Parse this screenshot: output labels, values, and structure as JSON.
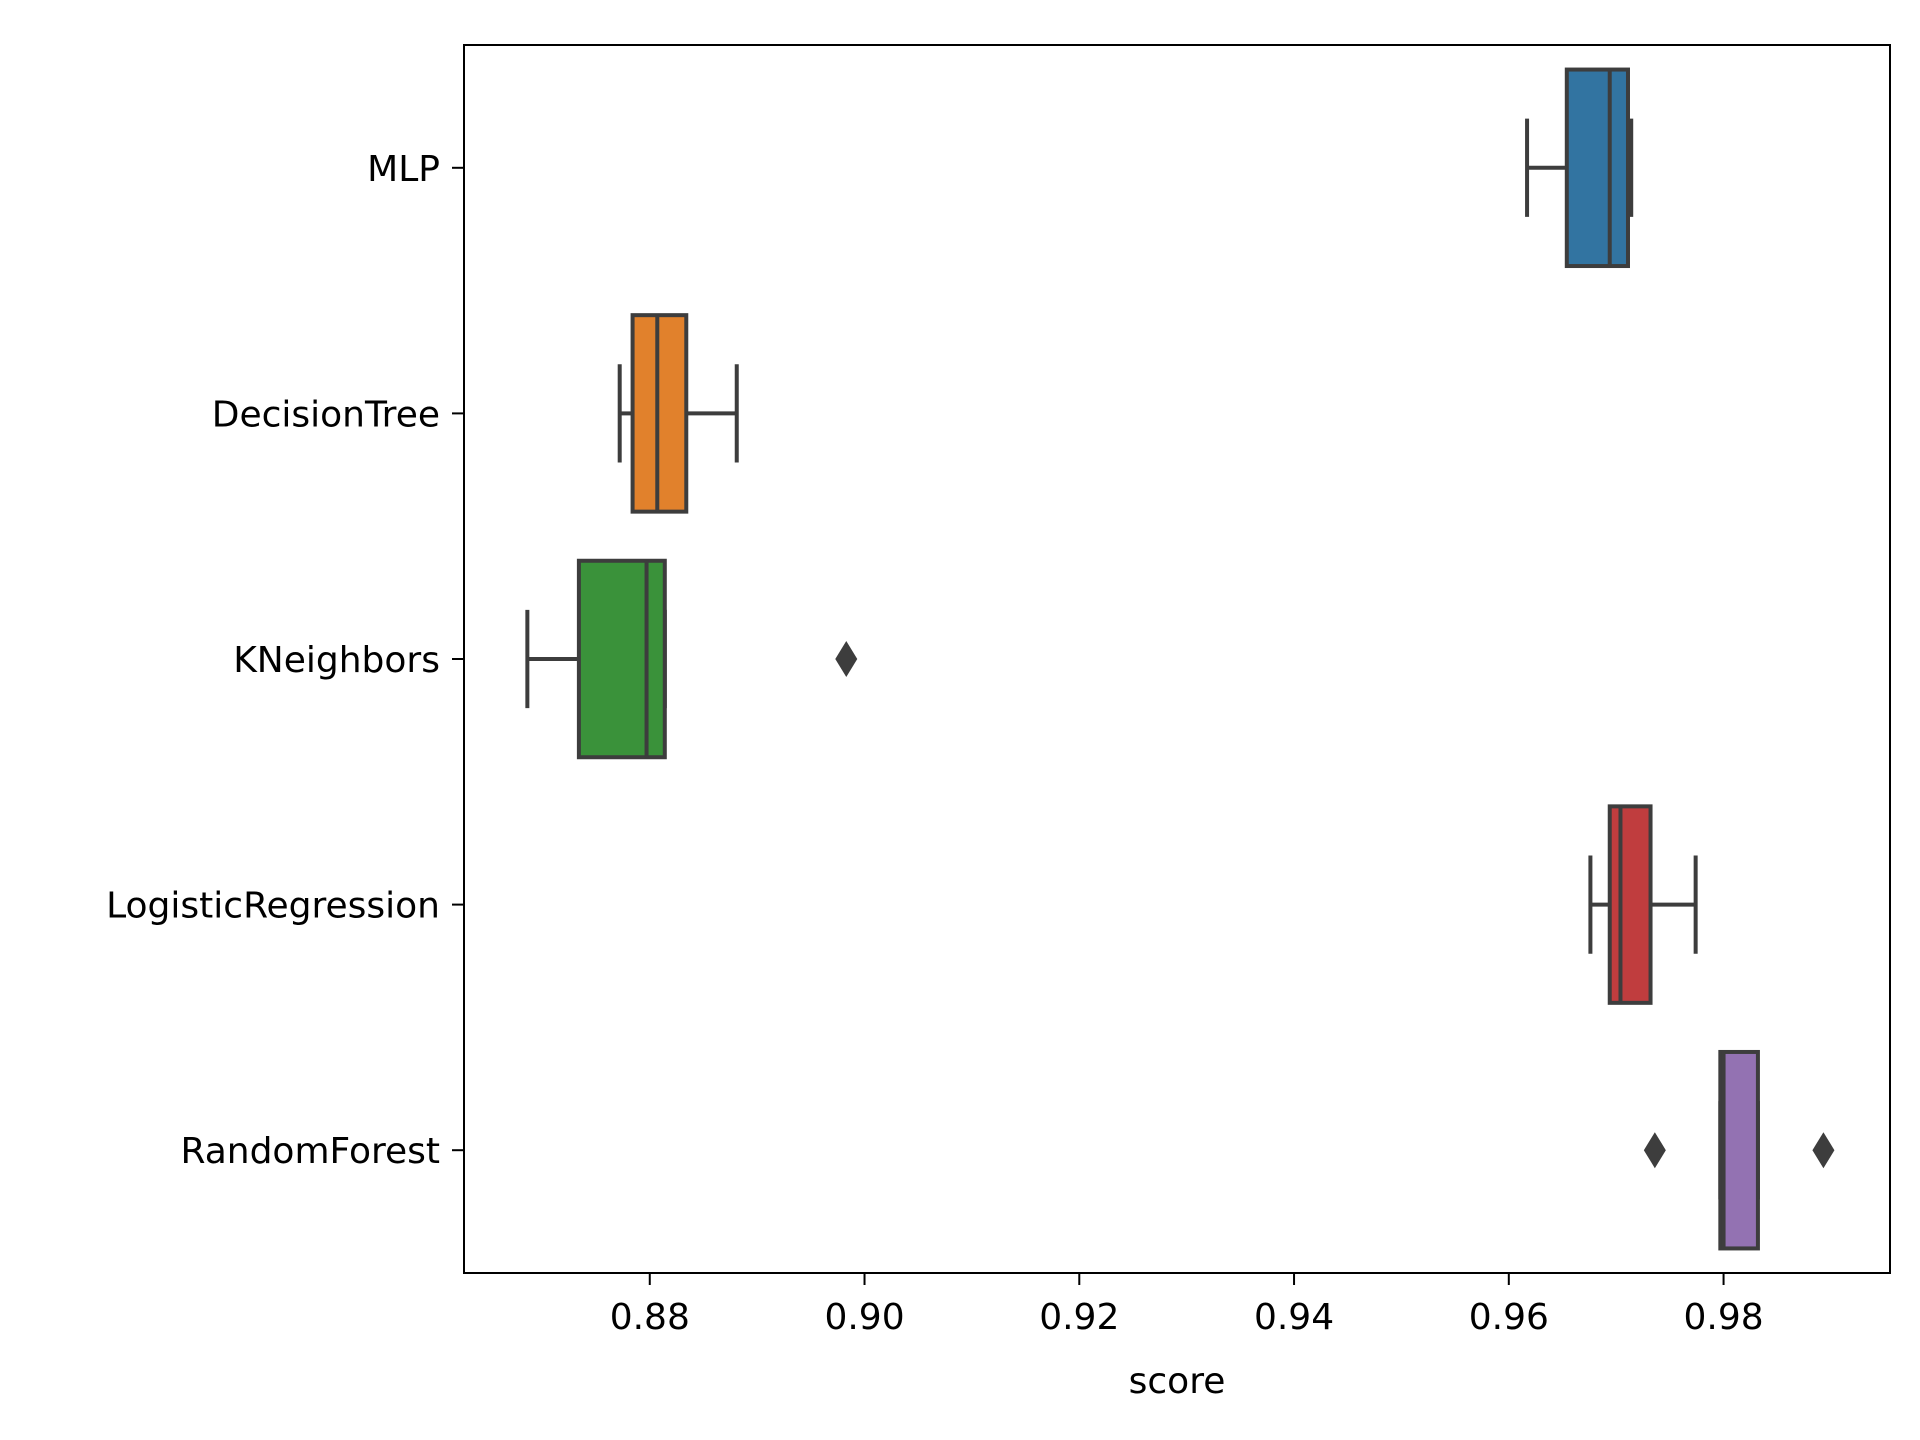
{
  "chart_data": {
    "type": "boxplot",
    "orientation": "horizontal",
    "title": "",
    "xlabel": "score",
    "ylabel": "",
    "xlim": [
      0.8627,
      0.9955
    ],
    "xticks": [
      0.88,
      0.9,
      0.92,
      0.94,
      0.96,
      0.98
    ],
    "xtick_labels": [
      "0.88",
      "0.90",
      "0.92",
      "0.94",
      "0.96",
      "0.98"
    ],
    "grid": false,
    "categories": [
      "MLP",
      "DecisionTree",
      "KNeighbors",
      "LogisticRegression",
      "RandomForest"
    ],
    "boxes": [
      {
        "category": "MLP",
        "color": "#3274a1",
        "whisker_low": 0.9617,
        "q1": 0.9654,
        "median": 0.9694,
        "q3": 0.9711,
        "whisker_high": 0.9714,
        "outliers": []
      },
      {
        "category": "DecisionTree",
        "color": "#e1812c",
        "whisker_low": 0.8772,
        "q1": 0.8784,
        "median": 0.8807,
        "q3": 0.8834,
        "whisker_high": 0.8881,
        "outliers": []
      },
      {
        "category": "KNeighbors",
        "color": "#3a923a",
        "whisker_low": 0.8686,
        "q1": 0.8734,
        "median": 0.8797,
        "q3": 0.8814,
        "whisker_high": 0.8814,
        "outliers": [
          0.8983
        ]
      },
      {
        "category": "LogisticRegression",
        "color": "#c03d3e",
        "whisker_low": 0.9676,
        "q1": 0.9694,
        "median": 0.9704,
        "q3": 0.9732,
        "whisker_high": 0.9774,
        "outliers": []
      },
      {
        "category": "RandomForest",
        "color": "#9372b2",
        "whisker_low": 0.9797,
        "q1": 0.9797,
        "median": 0.98,
        "q3": 0.9832,
        "whisker_high": 0.9832,
        "outliers": [
          0.9736,
          0.9893
        ]
      }
    ],
    "line_color": "#3d3d3d"
  }
}
